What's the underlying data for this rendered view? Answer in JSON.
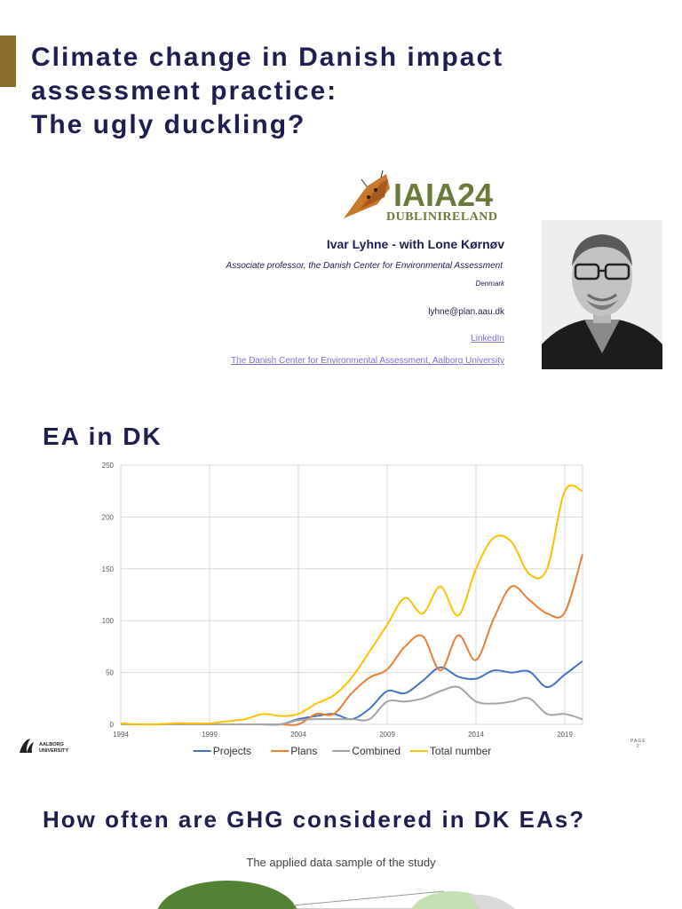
{
  "header": {
    "title_lines": [
      "Climate change in Danish impact",
      "assessment practice:",
      "The ugly duckling?"
    ]
  },
  "logo": {
    "text_main": "IAIA24",
    "text_sub": "DUBLINIRELAND"
  },
  "author": {
    "name": "Ivar Lyhne - with Lone Kørnøv",
    "role": "Associate professor, the Danish Center for Environmental Assessment",
    "country": "Denmark",
    "email": "lyhne@plan.aau.dk",
    "link_linkedin": "LinkedIn",
    "link_dcea": "The Danish Center for Environmental Assessment, Aalborg University"
  },
  "section1": {
    "heading": "EA in DK"
  },
  "chart_data": {
    "type": "line",
    "title": "",
    "xlabel": "",
    "ylabel": "",
    "xlim": [
      1994,
      2020
    ],
    "ylim": [
      0,
      250
    ],
    "yticks": [
      0,
      50,
      100,
      150,
      200,
      250
    ],
    "xticks": [
      1994,
      1999,
      2004,
      2009,
      2014,
      2019
    ],
    "grid": true,
    "legend_position": "bottom",
    "x": [
      1994,
      1995,
      1996,
      1997,
      1998,
      1999,
      2000,
      2001,
      2002,
      2003,
      2004,
      2005,
      2006,
      2007,
      2008,
      2009,
      2010,
      2011,
      2012,
      2013,
      2014,
      2015,
      2016,
      2017,
      2018,
      2019,
      2020
    ],
    "series": [
      {
        "name": "Projects",
        "color": "#4472c4",
        "values": [
          0,
          0,
          0,
          0,
          0,
          0,
          0,
          0,
          0,
          0,
          5,
          8,
          10,
          5,
          15,
          32,
          30,
          42,
          55,
          46,
          44,
          52,
          50,
          51,
          36,
          48,
          61
        ]
      },
      {
        "name": "Plans",
        "color": "#ed7d31",
        "values": [
          0,
          0,
          0,
          0,
          0,
          0,
          0,
          0,
          0,
          0,
          0,
          10,
          10,
          30,
          45,
          53,
          75,
          85,
          52,
          86,
          62,
          102,
          133,
          120,
          107,
          108,
          164
        ]
      },
      {
        "name": "Combined",
        "color": "#a5a5a5",
        "values": [
          0,
          0,
          0,
          0,
          0,
          0,
          0,
          0,
          0,
          0,
          4,
          5,
          5,
          5,
          5,
          22,
          22,
          25,
          32,
          36,
          22,
          20,
          22,
          25,
          10,
          10,
          5
        ]
      },
      {
        "name": "Total number",
        "color": "#ffc000",
        "values": [
          1,
          0,
          0,
          1,
          1,
          1,
          3,
          5,
          10,
          8,
          10,
          20,
          28,
          45,
          70,
          96,
          122,
          107,
          133,
          105,
          150,
          180,
          176,
          145,
          150,
          225,
          225
        ]
      }
    ]
  },
  "footer": {
    "aau_line1": "AALBORG",
    "aau_line2": "UNIVERSITY",
    "page_label": "PAGE",
    "page_number": "2"
  },
  "section2": {
    "heading": "How often are GHG considered in DK EAs?",
    "sample_title": "The applied data sample of the study"
  },
  "colors": {
    "heading": "#1e1e50",
    "accent": "#8a6e2b",
    "link": "#7b6fd6"
  }
}
